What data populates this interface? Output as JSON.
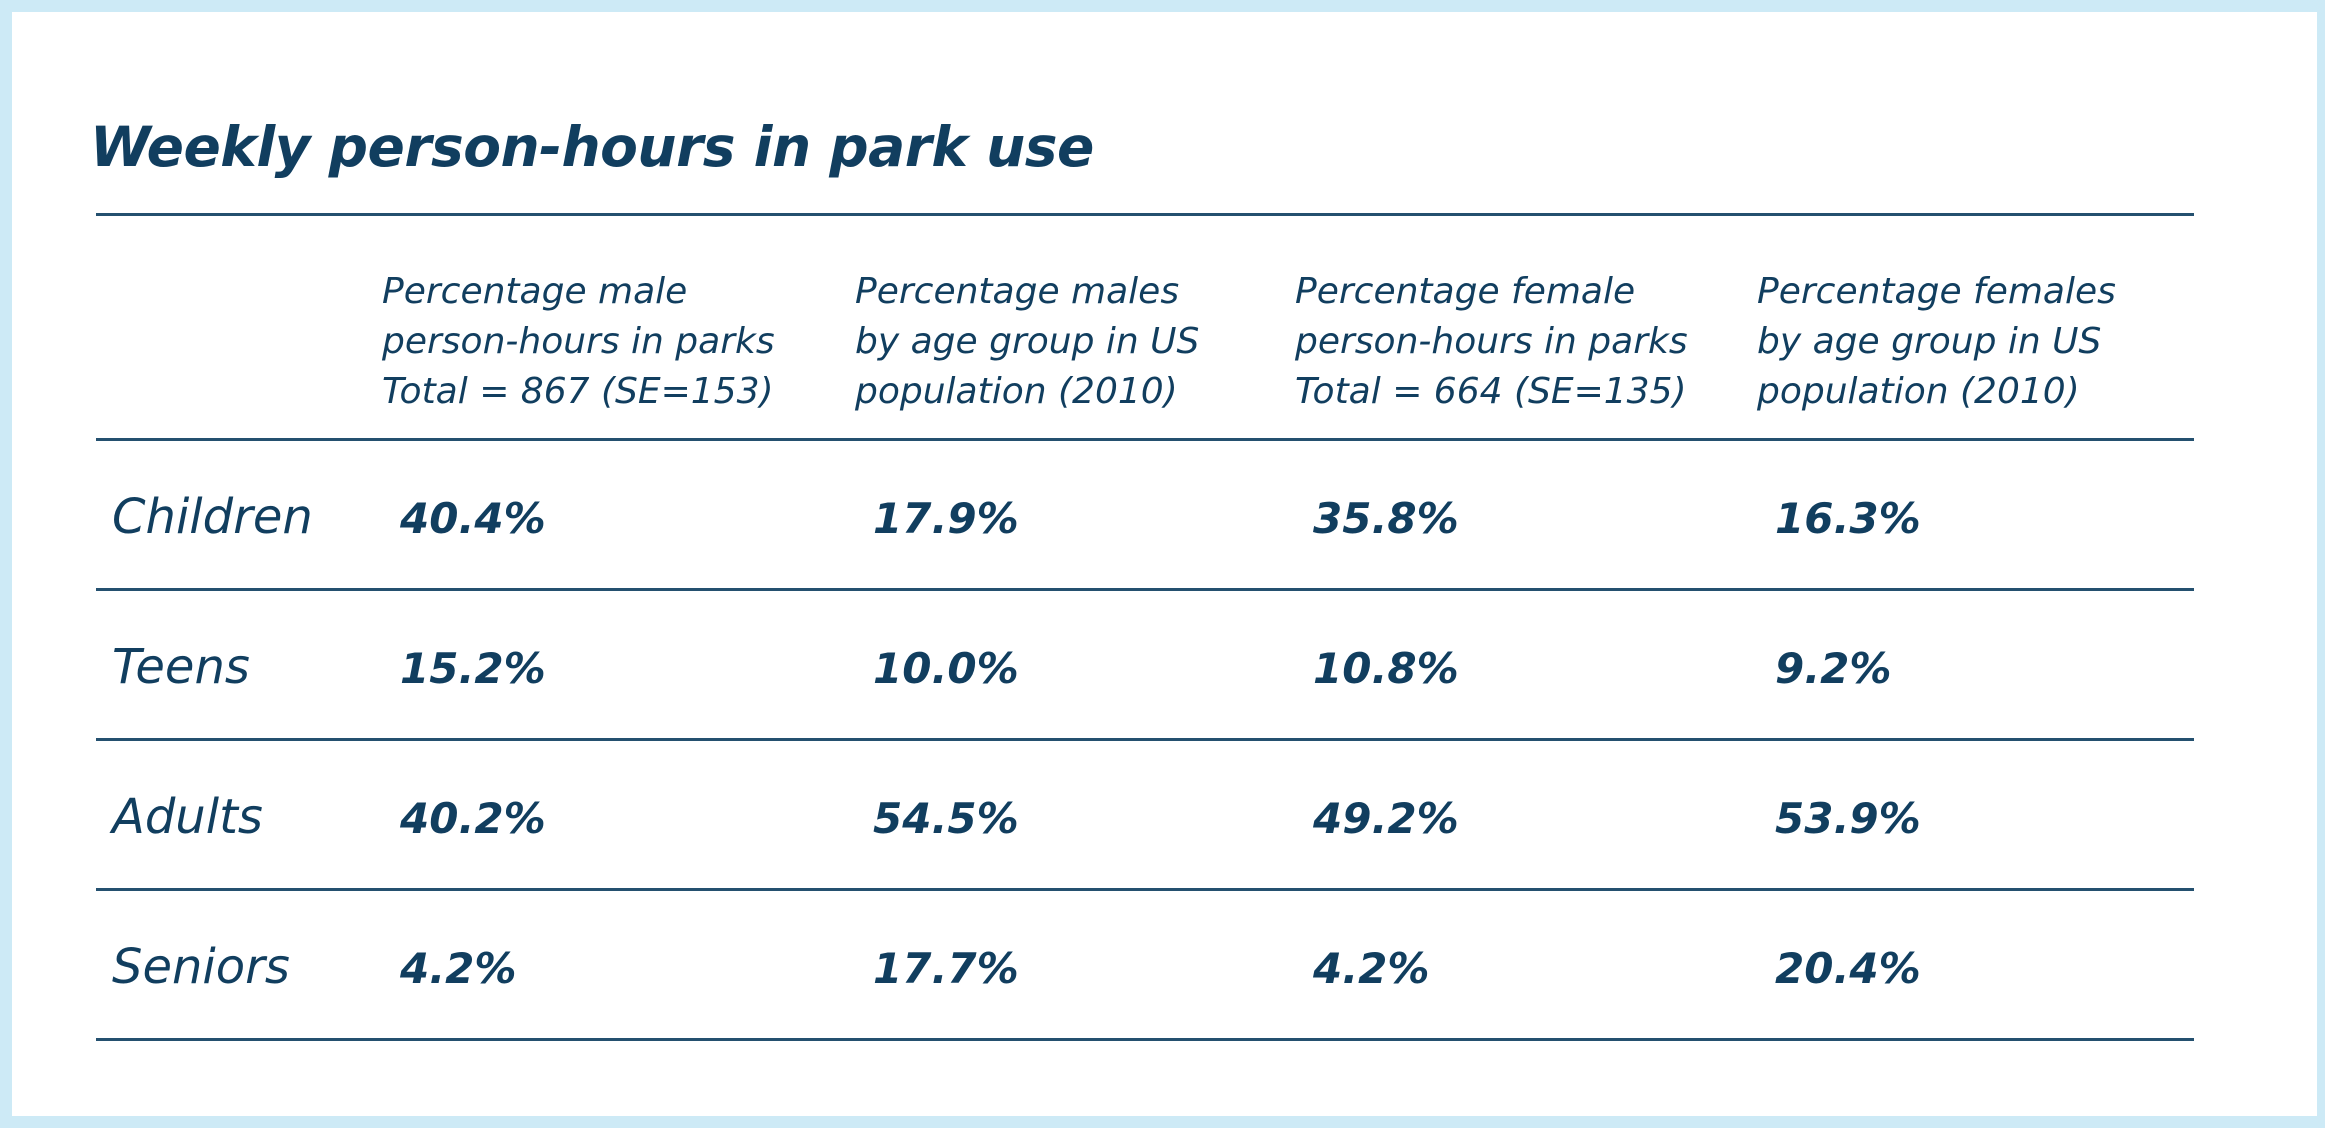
{
  "chart_data": {
    "type": "table",
    "title": "Weekly person-hours in park use",
    "columns": [
      {
        "lines": [
          "Percentage male",
          "person-hours in parks",
          "Total = 867 (SE=153)"
        ]
      },
      {
        "lines": [
          "Percentage males",
          "by age group in US",
          "population (2010)"
        ]
      },
      {
        "lines": [
          "Percentage female",
          "person-hours in parks",
          "Total = 664 (SE=135)"
        ]
      },
      {
        "lines": [
          "Percentage females",
          "by age group in US",
          "population (2010)"
        ]
      }
    ],
    "rows": [
      {
        "label": "Children",
        "values": [
          "40.4%",
          "17.9%",
          "35.8%",
          "16.3%"
        ]
      },
      {
        "label": "Teens",
        "values": [
          "15.2%",
          "10.0%",
          "10.8%",
          "9.2%"
        ]
      },
      {
        "label": "Adults",
        "values": [
          "40.2%",
          "54.5%",
          "49.2%",
          "53.9%"
        ]
      },
      {
        "label": "Seniors",
        "values": [
          "4.2%",
          "17.7%",
          "4.2%",
          "20.4%"
        ]
      }
    ],
    "colors": {
      "text": "#113e5f",
      "rule": "#24506f",
      "background_frame": "#cdeaf6",
      "card": "#ffffff"
    }
  }
}
